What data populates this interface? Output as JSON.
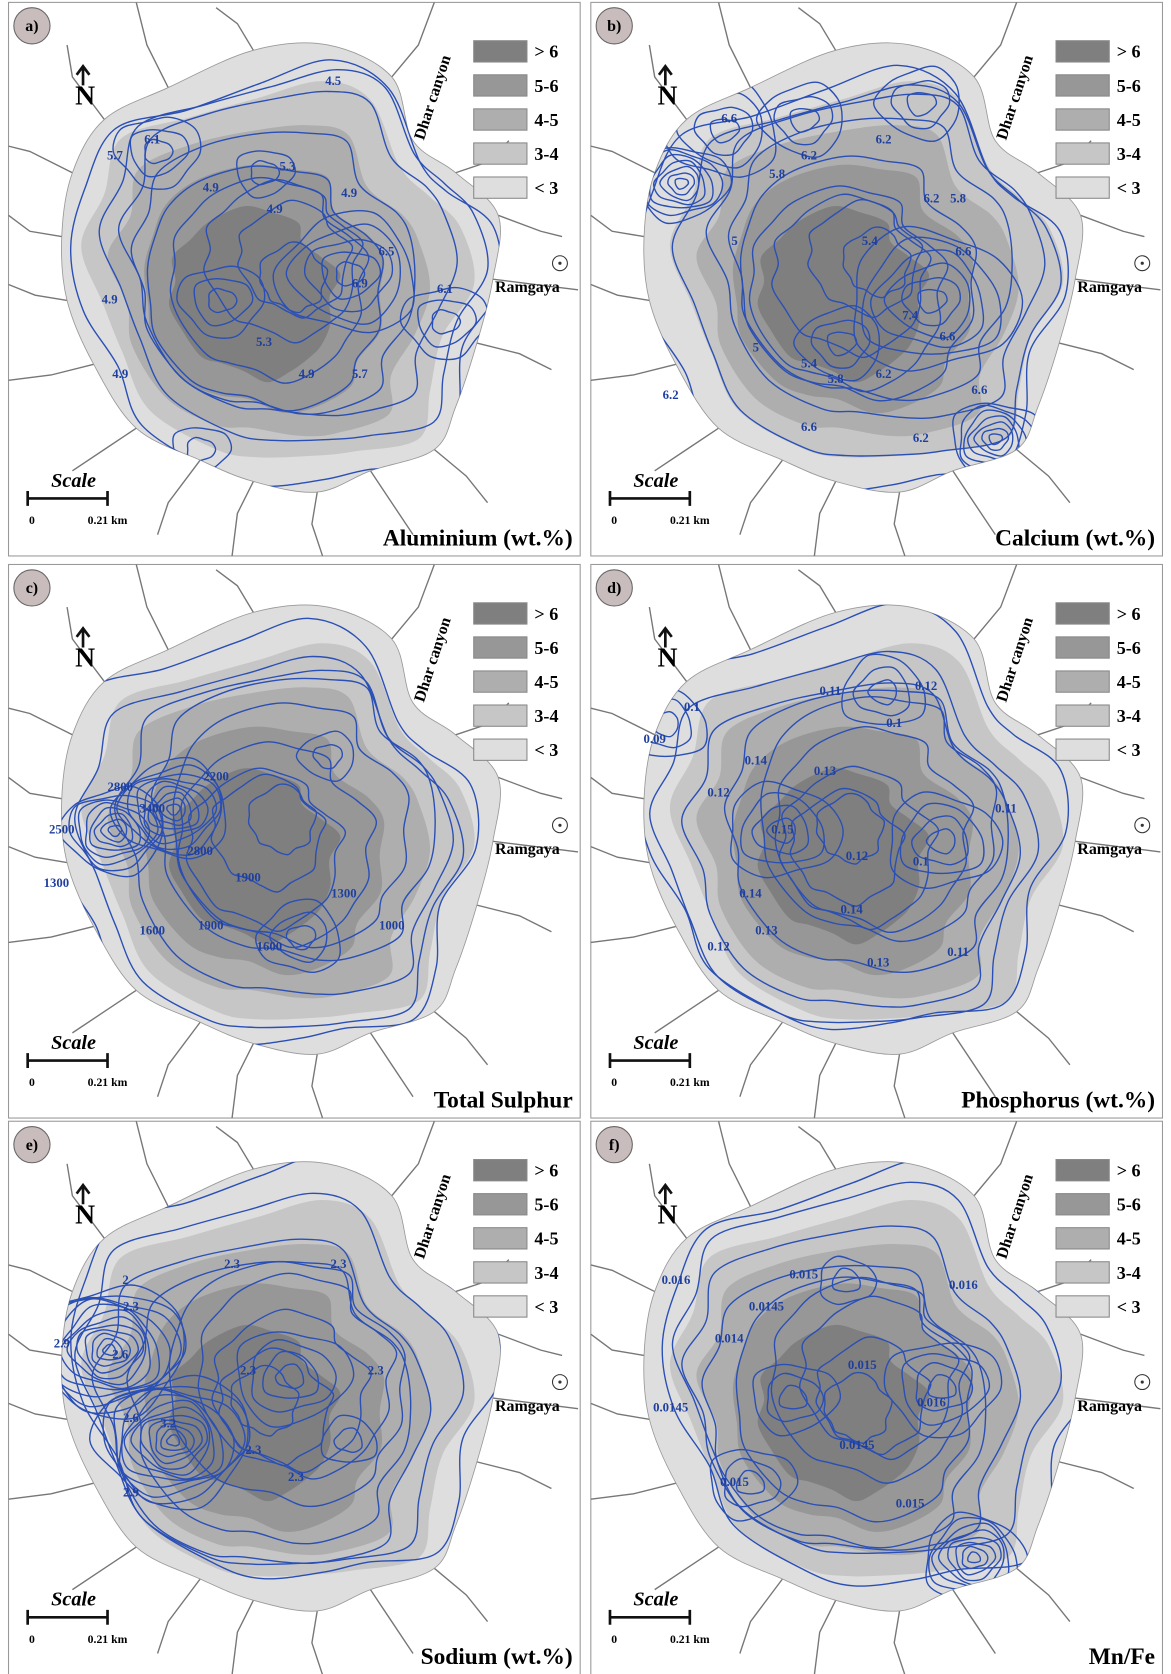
{
  "legend": [
    "> 6",
    "5-6",
    "4-5",
    "3-4",
    "< 3"
  ],
  "north": "N",
  "places": {
    "canyon": "Dhar canyon",
    "village": "Ramgaya"
  },
  "scale": {
    "title": "Scale",
    "start": "0",
    "end": "0.21 km"
  },
  "panels": [
    {
      "label": "a)",
      "title": "Aluminium (wt.%)",
      "contour_labels": [
        "4.5",
        "6.1",
        "5.7",
        "4.9",
        "5.3",
        "4.9",
        "4.9",
        "6.5",
        "6.9",
        "6.1",
        "4.9",
        "5.3",
        "4.9",
        "5.7",
        "4.9"
      ]
    },
    {
      "label": "b)",
      "title": "Calcium (wt.%)",
      "contour_labels": [
        "6.6",
        "6.2",
        "6.2",
        "5.8",
        "5",
        "5.4",
        "6.2",
        "5.8",
        "6.6",
        "7.4",
        "6.6",
        "6.2",
        "5.4",
        "5.8",
        "5",
        "6.2",
        "6.6",
        "6.2",
        "6.6"
      ]
    },
    {
      "label": "c)",
      "title": "Total Sulphur",
      "contour_labels": [
        "2800",
        "3400",
        "2200",
        "2500",
        "2800",
        "1900",
        "1300",
        "1600",
        "1900",
        "1300",
        "1600",
        "1000"
      ]
    },
    {
      "label": "d)",
      "title": "Phosphorus (wt.%)",
      "contour_labels": [
        "0.1",
        "0.11",
        "0.12",
        "0.1",
        "0.09",
        "0.14",
        "0.13",
        "0.12",
        "0.11",
        "0.15",
        "0.12",
        "0.1",
        "0.14",
        "0.13",
        "0.14",
        "0.12",
        "0.13",
        "0.11"
      ]
    },
    {
      "label": "e)",
      "title": "Sodium (wt.%)",
      "contour_labels": [
        "2.3",
        "2.3",
        "2",
        "2.3",
        "2.9",
        "2.6",
        "2.3",
        "2.3",
        "2.6",
        "3.2",
        "2.3",
        "2.9",
        "2.3"
      ]
    },
    {
      "label": "f)",
      "title": "Mn/Fe",
      "contour_labels": [
        "0.016",
        "0.015",
        "0.016",
        "0.0145",
        "0.014",
        "0.015",
        "0.0145",
        "0.016",
        "0.0145",
        "0.015",
        "0.015"
      ]
    }
  ]
}
